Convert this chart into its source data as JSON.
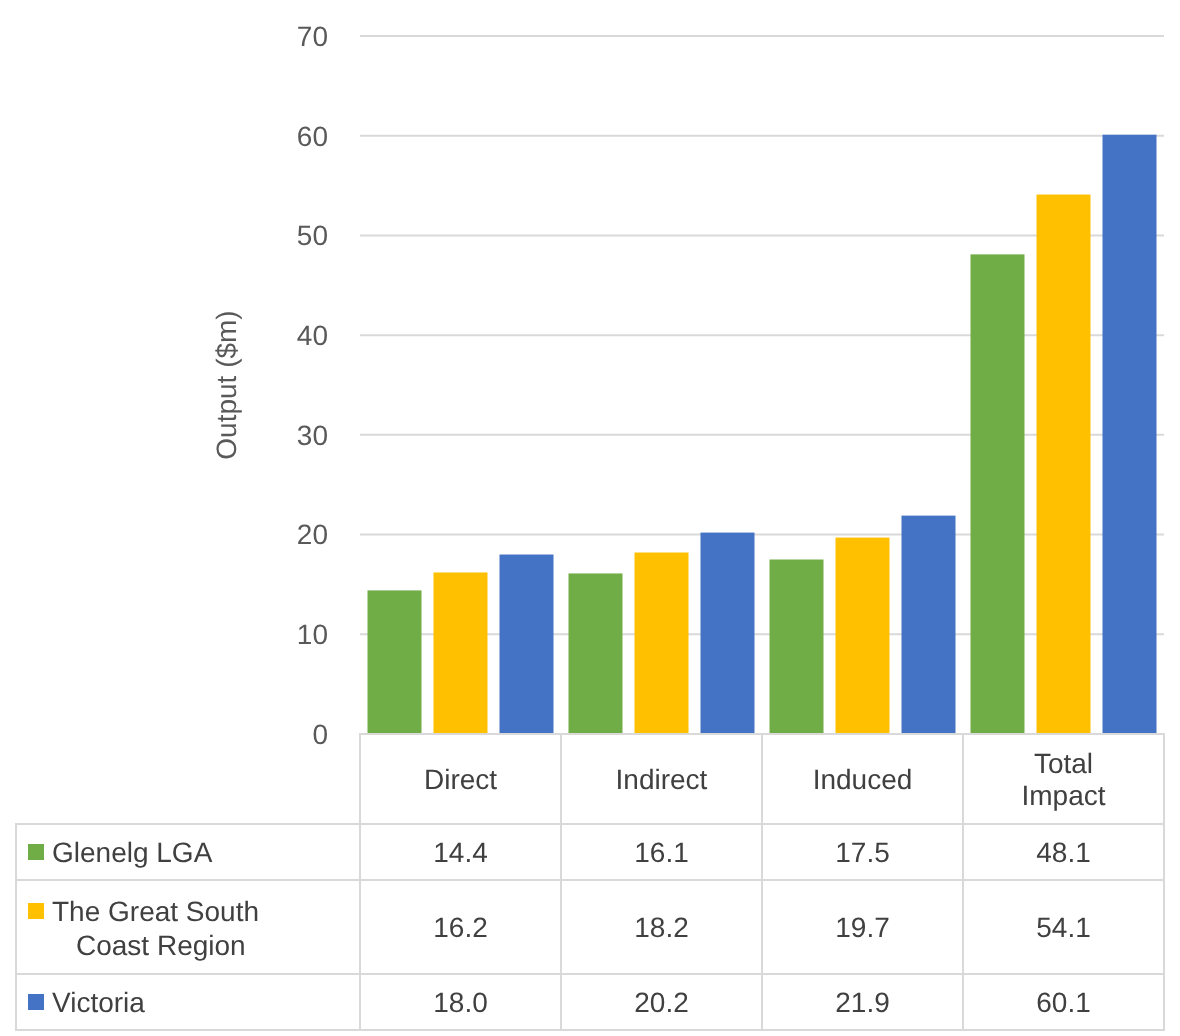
{
  "chart_data": {
    "type": "bar",
    "ylabel": "Output ($m)",
    "categories": [
      "Direct",
      "Indirect",
      "Induced",
      "Total Impact"
    ],
    "series": [
      {
        "name": "Glenelg LGA",
        "color": "#70ad47",
        "values": [
          14.4,
          16.1,
          17.5,
          48.1
        ],
        "value_labels": [
          "14.4",
          "16.1",
          "17.5",
          "48.1"
        ]
      },
      {
        "name": "The Great South Coast Region",
        "color": "#ffc000",
        "values": [
          16.2,
          18.2,
          19.7,
          54.1
        ],
        "value_labels": [
          "16.2",
          "18.2",
          "19.7",
          "54.1"
        ]
      },
      {
        "name": "Victoria",
        "color": "#4472c4",
        "values": [
          18.0,
          20.2,
          21.9,
          60.1
        ],
        "value_labels": [
          "18.0",
          "20.2",
          "21.9",
          "60.1"
        ]
      }
    ],
    "ylim": [
      0,
      70
    ],
    "yticks": [
      0,
      10,
      20,
      30,
      40,
      50,
      60,
      70
    ],
    "grid": "y",
    "legend": "bottom left"
  }
}
